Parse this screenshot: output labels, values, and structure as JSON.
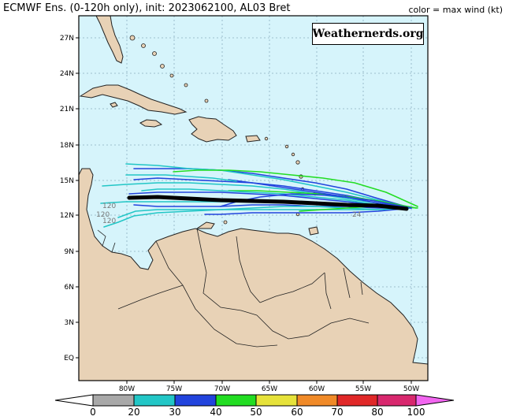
{
  "header": {
    "title": "ECMWF Ens. (0-120h only), init: 2023062100, AL03 Bret",
    "color_note": "color = max wind (kt)"
  },
  "watermark": "Weathernerds.org",
  "map": {
    "lat_labels": [
      "27N",
      "24N",
      "21N",
      "18N",
      "15N",
      "12N",
      "9N",
      "6N",
      "3N",
      "EQ"
    ],
    "lon_labels": [
      "80W",
      "75W",
      "70W",
      "65W",
      "60W",
      "55W",
      "50W"
    ],
    "hour_labels": [
      "120",
      "120",
      "120",
      "24"
    ],
    "ocean_color": "#d6f4fb",
    "land_color": "#e8d2b6",
    "mean_track_color": "#000000"
  },
  "colorbar": {
    "ticks": [
      "0",
      "20",
      "30",
      "40",
      "50",
      "60",
      "70",
      "80",
      "100"
    ],
    "colors": [
      "#ffffff",
      "#a8a8a8",
      "#22c6c6",
      "#2244dd",
      "#22dd22",
      "#e6e23a",
      "#f08a28",
      "#e02828",
      "#d8286e",
      "#f266f0"
    ]
  }
}
